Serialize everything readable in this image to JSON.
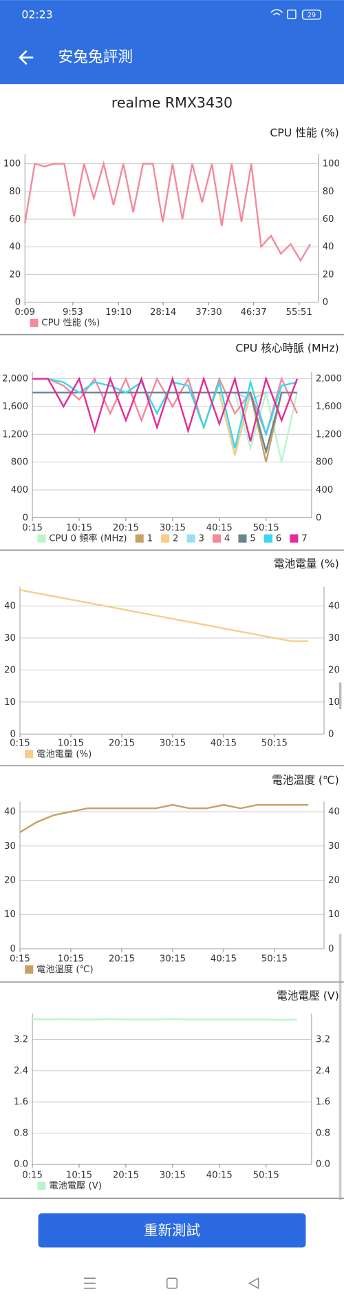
{
  "status_bar": {
    "time": "02:23",
    "battery": "29"
  },
  "app_bar": {
    "title": "安兔兔評測"
  },
  "device": "realme RMX3430",
  "chart_data": [
    {
      "type": "line",
      "title": "CPU 性能 (%)",
      "grid": true,
      "legend": "bottom-left",
      "x": [
        9,
        129,
        249,
        369,
        489,
        609,
        729,
        849,
        969,
        1089,
        1209,
        1329,
        1449,
        1569,
        1689,
        1809,
        1929,
        2049,
        2169,
        2289,
        2409,
        2529,
        2649,
        2769,
        2889,
        3009,
        3129,
        3249,
        3369,
        3489
      ],
      "xlim": [
        9,
        3585
      ],
      "xticks": [
        {
          "value": 9,
          "label": "0:09"
        },
        {
          "value": 593,
          "label": "9:53"
        },
        {
          "value": 1150,
          "label": "19:10"
        },
        {
          "value": 1694,
          "label": "28:14"
        },
        {
          "value": 2250,
          "label": "37:30"
        },
        {
          "value": 2797,
          "label": "46:37"
        },
        {
          "value": 3351,
          "label": "55:51"
        }
      ],
      "ylim": [
        0,
        107
      ],
      "yticks": [
        0,
        20,
        40,
        60,
        80,
        100
      ],
      "series": [
        {
          "name": "CPU 性能 (%)",
          "color": "#f48a9c",
          "values": [
            57,
            100,
            98,
            100,
            100,
            62,
            100,
            75,
            100,
            70,
            100,
            65,
            100,
            100,
            58,
            100,
            60,
            100,
            72,
            100,
            55,
            100,
            58,
            100,
            40,
            48,
            35,
            42,
            30,
            42
          ]
        }
      ]
    },
    {
      "type": "line",
      "title": "CPU 核心時脈 (MHz)",
      "grid": true,
      "legend": "bottom-left",
      "x": [
        15,
        215,
        415,
        615,
        815,
        1015,
        1215,
        1415,
        1615,
        1815,
        2015,
        2215,
        2415,
        2615,
        2815,
        3015,
        3215,
        3415
      ],
      "xlim": [
        15,
        3600
      ],
      "xticks": [
        {
          "value": 15,
          "label": "0:15"
        },
        {
          "value": 615,
          "label": "10:15"
        },
        {
          "value": 1215,
          "label": "20:15"
        },
        {
          "value": 1815,
          "label": "30:15"
        },
        {
          "value": 2415,
          "label": "40:15"
        },
        {
          "value": 3015,
          "label": "50:15"
        }
      ],
      "ylim": [
        0,
        2096
      ],
      "yticks": [
        0,
        400,
        800,
        {
          "value": 1200,
          "label": "1,200"
        },
        {
          "value": 1600,
          "label": "1,600"
        },
        {
          "value": 2000,
          "label": "2,000"
        }
      ],
      "series": [
        {
          "name": "CPU 0 頻率 (MHz)",
          "color": "#b9f6ca",
          "values": [
            1800,
            1800,
            1800,
            1800,
            1800,
            1800,
            1800,
            1800,
            1800,
            1800,
            1800,
            1800,
            1800,
            1800,
            1000,
            1800,
            800,
            1800
          ]
        },
        {
          "name": "1",
          "color": "#c8a165",
          "values": [
            1800,
            1800,
            1800,
            1800,
            1800,
            1800,
            1800,
            1800,
            1800,
            1800,
            1800,
            1800,
            1800,
            900,
            1800,
            800,
            1800,
            1800
          ]
        },
        {
          "name": "2",
          "color": "#f9cb88",
          "values": [
            1800,
            1800,
            1800,
            1800,
            1800,
            1800,
            1800,
            1800,
            1800,
            1800,
            1800,
            1800,
            1800,
            900,
            1800,
            1800,
            1800,
            1800
          ]
        },
        {
          "name": "3",
          "color": "#9ae0f5",
          "values": [
            1800,
            1800,
            1800,
            1800,
            1800,
            1800,
            1800,
            1800,
            1800,
            1800,
            1800,
            1800,
            1800,
            1800,
            1700,
            1800,
            1800,
            1800
          ]
        },
        {
          "name": "4",
          "color": "#f4899a",
          "values": [
            2000,
            2000,
            1900,
            1700,
            2000,
            1500,
            2000,
            1400,
            2000,
            1600,
            2000,
            1300,
            2000,
            1500,
            1800,
            1200,
            2000,
            1500
          ]
        },
        {
          "name": "5",
          "color": "#6c8391",
          "values": [
            1800,
            1800,
            1800,
            1800,
            1800,
            1800,
            1800,
            1800,
            1800,
            1800,
            1800,
            1800,
            1800,
            1800,
            1800,
            950,
            1800,
            1800
          ]
        },
        {
          "name": "6",
          "color": "#36d9ee",
          "values": [
            2000,
            2000,
            1950,
            1800,
            1950,
            1900,
            1800,
            1950,
            1500,
            1950,
            1900,
            1300,
            1950,
            1000,
            1950,
            1200,
            1900,
            1950
          ]
        },
        {
          "name": "7",
          "color": "#e62a97",
          "values": [
            2000,
            2000,
            1600,
            2000,
            1250,
            2000,
            1400,
            2000,
            1300,
            2000,
            1250,
            2000,
            1350,
            2000,
            1100,
            2000,
            1400,
            2000
          ]
        }
      ]
    },
    {
      "type": "line",
      "title": "電池電量 (%)",
      "grid": true,
      "legend": "bottom-left",
      "x": [
        15,
        215,
        415,
        615,
        815,
        1015,
        1215,
        1415,
        1615,
        1815,
        2015,
        2215,
        2415,
        2615,
        2815,
        3015,
        3215,
        3415
      ],
      "xlim": [
        15,
        3600
      ],
      "xticks": [
        {
          "value": 15,
          "label": "0:15"
        },
        {
          "value": 615,
          "label": "10:15"
        },
        {
          "value": 1215,
          "label": "20:15"
        },
        {
          "value": 1815,
          "label": "30:15"
        },
        {
          "value": 2415,
          "label": "40:15"
        },
        {
          "value": 3015,
          "label": "50:15"
        }
      ],
      "ylim": [
        0,
        46
      ],
      "yticks": [
        0,
        10,
        20,
        30,
        40
      ],
      "series": [
        {
          "name": "電池電量 (%)",
          "color": "#f8cd8c",
          "values": [
            45,
            44,
            43,
            42,
            41,
            40,
            39,
            38,
            37,
            36,
            35,
            34,
            33,
            32,
            31,
            30,
            29,
            29
          ]
        }
      ]
    },
    {
      "type": "line",
      "title": "電池溫度 (℃)",
      "grid": true,
      "legend": "bottom-left",
      "x": [
        15,
        215,
        415,
        615,
        815,
        1015,
        1215,
        1415,
        1615,
        1815,
        2015,
        2215,
        2415,
        2615,
        2815,
        3015,
        3215,
        3415
      ],
      "xlim": [
        15,
        3600
      ],
      "xticks": [
        {
          "value": 15,
          "label": "0:15"
        },
        {
          "value": 615,
          "label": "10:15"
        },
        {
          "value": 1215,
          "label": "20:15"
        },
        {
          "value": 1815,
          "label": "30:15"
        },
        {
          "value": 2415,
          "label": "40:15"
        },
        {
          "value": 3015,
          "label": "50:15"
        }
      ],
      "ylim": [
        0,
        43
      ],
      "yticks": [
        0,
        10,
        20,
        30,
        40
      ],
      "series": [
        {
          "name": "電池溫度 (℃)",
          "color": "#c9a064",
          "values": [
            34,
            37,
            39,
            40,
            41,
            41,
            41,
            41,
            41,
            42,
            41,
            41,
            42,
            41,
            42,
            42,
            42,
            42
          ]
        }
      ]
    },
    {
      "type": "line",
      "title": "電池電壓 (V)",
      "grid": true,
      "legend": "bottom-left",
      "x": [
        15,
        215,
        415,
        615,
        815,
        1015,
        1215,
        1415,
        1615,
        1815,
        2015,
        2215,
        2415,
        2615,
        2815,
        3015,
        3215,
        3415
      ],
      "xlim": [
        15,
        3600
      ],
      "xticks": [
        {
          "value": 15,
          "label": "0:15"
        },
        {
          "value": 615,
          "label": "10:15"
        },
        {
          "value": 1215,
          "label": "20:15"
        },
        {
          "value": 1815,
          "label": "30:15"
        },
        {
          "value": 2415,
          "label": "40:15"
        },
        {
          "value": 3015,
          "label": "50:15"
        }
      ],
      "ylim": [
        0,
        3.86
      ],
      "yticks": [
        {
          "value": 0,
          "label": "0.0"
        },
        0.8,
        1.6,
        2.4,
        3.2
      ],
      "series": [
        {
          "name": "電池電壓 (V)",
          "color": "#b9f6ca",
          "values": [
            3.72,
            3.71,
            3.72,
            3.71,
            3.71,
            3.72,
            3.71,
            3.71,
            3.71,
            3.72,
            3.71,
            3.71,
            3.71,
            3.71,
            3.71,
            3.71,
            3.7,
            3.71
          ]
        }
      ]
    }
  ],
  "button": "重新測試"
}
